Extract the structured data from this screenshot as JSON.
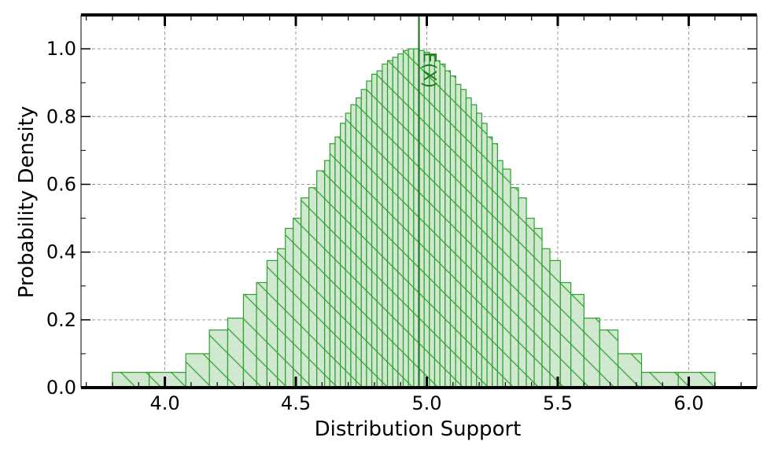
{
  "chart_data": {
    "type": "bar",
    "title": "",
    "xlabel": "Distribution Support",
    "ylabel": "Probability Density",
    "xlim": [
      3.68,
      6.26
    ],
    "ylim": [
      0.0,
      1.1
    ],
    "xticks": [
      4.0,
      4.5,
      5.0,
      5.5,
      6.0
    ],
    "xtick_labels": [
      "4.0",
      "4.5",
      "5.0",
      "5.5",
      "6.0"
    ],
    "yticks": [
      0.0,
      0.2,
      0.4,
      0.6,
      0.8,
      1.0
    ],
    "ytick_labels": [
      "0.0",
      "0.2",
      "0.4",
      "0.6",
      "0.8",
      "1.0"
    ],
    "grid": true,
    "bar_fill": "#cfe8cf",
    "bar_edge": "#2ca02c",
    "hatch": "backslash",
    "vline": {
      "x": 4.97,
      "label": "E(X)",
      "color": "#1f7a1f"
    },
    "bins": [
      [
        3.8,
        3.94,
        0.045
      ],
      [
        3.94,
        4.08,
        0.045
      ],
      [
        4.08,
        4.17,
        0.1
      ],
      [
        4.17,
        4.24,
        0.17
      ],
      [
        4.24,
        4.3,
        0.205
      ],
      [
        4.3,
        4.35,
        0.275
      ],
      [
        4.35,
        4.39,
        0.31
      ],
      [
        4.39,
        4.43,
        0.375
      ],
      [
        4.43,
        4.46,
        0.41
      ],
      [
        4.46,
        4.49,
        0.47
      ],
      [
        4.49,
        4.52,
        0.5
      ],
      [
        4.52,
        4.55,
        0.56
      ],
      [
        4.55,
        4.58,
        0.59
      ],
      [
        4.58,
        4.61,
        0.64
      ],
      [
        4.61,
        4.63,
        0.67
      ],
      [
        4.63,
        4.65,
        0.72
      ],
      [
        4.65,
        4.67,
        0.74
      ],
      [
        4.67,
        4.69,
        0.78
      ],
      [
        4.69,
        4.71,
        0.81
      ],
      [
        4.71,
        4.73,
        0.835
      ],
      [
        4.73,
        4.75,
        0.855
      ],
      [
        4.75,
        4.77,
        0.88
      ],
      [
        4.77,
        4.79,
        0.905
      ],
      [
        4.79,
        4.81,
        0.925
      ],
      [
        4.81,
        4.83,
        0.935
      ],
      [
        4.83,
        4.85,
        0.955
      ],
      [
        4.85,
        4.87,
        0.965
      ],
      [
        4.87,
        4.89,
        0.975
      ],
      [
        4.89,
        4.91,
        0.985
      ],
      [
        4.91,
        4.93,
        0.995
      ],
      [
        4.93,
        4.95,
        1.0
      ],
      [
        4.95,
        4.97,
        1.0
      ],
      [
        4.97,
        4.99,
        0.995
      ],
      [
        4.99,
        5.01,
        0.99
      ],
      [
        5.01,
        5.03,
        0.98
      ],
      [
        5.03,
        5.05,
        0.965
      ],
      [
        5.05,
        5.07,
        0.955
      ],
      [
        5.07,
        5.09,
        0.935
      ],
      [
        5.09,
        5.11,
        0.92
      ],
      [
        5.11,
        5.13,
        0.895
      ],
      [
        5.13,
        5.15,
        0.88
      ],
      [
        5.15,
        5.17,
        0.855
      ],
      [
        5.17,
        5.19,
        0.835
      ],
      [
        5.19,
        5.21,
        0.81
      ],
      [
        5.21,
        5.23,
        0.78
      ],
      [
        5.23,
        5.25,
        0.74
      ],
      [
        5.25,
        5.27,
        0.72
      ],
      [
        5.27,
        5.29,
        0.67
      ],
      [
        5.29,
        5.32,
        0.645
      ],
      [
        5.32,
        5.35,
        0.59
      ],
      [
        5.35,
        5.38,
        0.56
      ],
      [
        5.38,
        5.41,
        0.5
      ],
      [
        5.41,
        5.44,
        0.47
      ],
      [
        5.44,
        5.47,
        0.41
      ],
      [
        5.47,
        5.51,
        0.375
      ],
      [
        5.51,
        5.55,
        0.31
      ],
      [
        5.55,
        5.6,
        0.275
      ],
      [
        5.6,
        5.66,
        0.205
      ],
      [
        5.66,
        5.73,
        0.17
      ],
      [
        5.73,
        5.82,
        0.1
      ],
      [
        5.82,
        5.96,
        0.045
      ],
      [
        5.96,
        6.1,
        0.045
      ]
    ]
  }
}
